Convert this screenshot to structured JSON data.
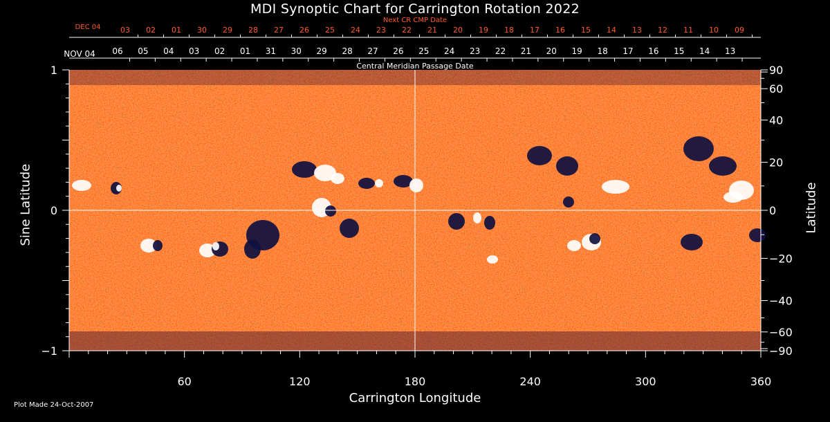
{
  "chart_data": {
    "type": "heatmap",
    "title": "MDI Synoptic Chart for Carrington Rotation 2022",
    "xlabel": "Carrington Longitude",
    "ylabel_left": "Sine Latitude",
    "ylabel_right": "Latitude",
    "xlim": [
      0,
      360
    ],
    "ylim": [
      -1,
      1
    ],
    "x_ticks": [
      60,
      120,
      180,
      240,
      300,
      360
    ],
    "y_ticks_left": [
      {
        "label": "1",
        "v": 1
      },
      {
        "label": "0",
        "v": 0
      },
      {
        "label": "−1",
        "v": -1
      }
    ],
    "y_ticks_right": [
      90,
      60,
      40,
      20,
      0,
      -20,
      -40,
      -60,
      -90
    ],
    "y_ticks_right_labels": [
      "90",
      "60",
      "40",
      "20",
      "0",
      "−20",
      "−40",
      "−60",
      "−90"
    ],
    "grid": "crosshair at longitude 180 and sine latitude 0",
    "cmp_date_label": "Central Meridian Passage Date",
    "cmp_start_label": "NOV 04",
    "cmp_dates": [
      "06",
      "05",
      "04",
      "03",
      "02",
      "01",
      "31",
      "30",
      "29",
      "28",
      "27",
      "26",
      "25",
      "24",
      "23",
      "22",
      "21",
      "20",
      "19",
      "18",
      "17",
      "16",
      "15",
      "14",
      "13"
    ],
    "next_cmp_label": "Next CR CMP Date",
    "next_start_label": "DEC 04",
    "next_dates": [
      "03",
      "02",
      "01",
      "30",
      "29",
      "28",
      "27",
      "26",
      "25",
      "24",
      "23",
      "22",
      "21",
      "20",
      "19",
      "18",
      "17",
      "16",
      "15",
      "14",
      "13",
      "12",
      "11",
      "10",
      "09"
    ],
    "colors": {
      "background_field": "#ff4a00",
      "positive_polarity": "#ffffff",
      "negative_polarity": "#101040",
      "axis": "#ffffff",
      "next_dates": "#ff5a28"
    }
  },
  "footer": {
    "plot_made": "Plot Made 24-Oct-2007"
  }
}
